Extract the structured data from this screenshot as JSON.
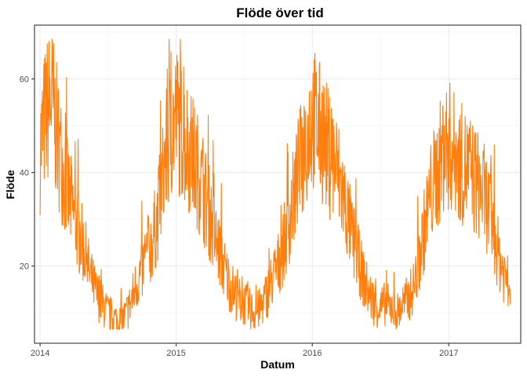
{
  "chart_data": {
    "type": "line",
    "title": "Flöde över tid",
    "xlabel": "Datum",
    "ylabel": "Flöde",
    "x_ticks": [
      "2014",
      "2015",
      "2016",
      "2017"
    ],
    "y_ticks": [
      20,
      40,
      60
    ],
    "xlim": [
      "2013-12-17",
      "2017-07-13"
    ],
    "ylim": [
      3.5,
      71.5
    ],
    "grid": true,
    "series": [
      {
        "color": "#FF7F0E",
        "x": [
          "2014-01-01",
          "2014-01-15",
          "2014-02-01",
          "2014-02-15",
          "2014-03-01",
          "2014-03-15",
          "2014-04-01",
          "2014-04-15",
          "2014-05-01",
          "2014-05-15",
          "2014-06-01",
          "2014-06-15",
          "2014-07-01",
          "2014-07-15",
          "2014-08-01",
          "2014-08-15",
          "2014-09-01",
          "2014-09-15",
          "2014-10-01",
          "2014-10-15",
          "2014-11-01",
          "2014-11-15",
          "2014-12-01",
          "2014-12-15",
          "2015-01-01",
          "2015-01-15",
          "2015-02-01",
          "2015-02-15",
          "2015-03-01",
          "2015-03-15",
          "2015-04-01",
          "2015-04-15",
          "2015-05-01",
          "2015-05-15",
          "2015-06-01",
          "2015-06-15",
          "2015-07-01",
          "2015-07-15",
          "2015-08-01",
          "2015-08-15",
          "2015-09-01",
          "2015-09-15",
          "2015-10-01",
          "2015-10-15",
          "2015-11-01",
          "2015-11-15",
          "2015-12-01",
          "2015-12-15",
          "2016-01-01",
          "2016-01-15",
          "2016-02-01",
          "2016-02-15",
          "2016-03-01",
          "2016-03-15",
          "2016-04-01",
          "2016-04-15",
          "2016-05-01",
          "2016-05-15",
          "2016-06-01",
          "2016-06-15",
          "2016-07-01",
          "2016-07-15",
          "2016-08-01",
          "2016-08-15",
          "2016-09-01",
          "2016-09-15",
          "2016-10-01",
          "2016-10-15",
          "2016-11-01",
          "2016-11-15",
          "2016-12-01",
          "2016-12-15",
          "2017-01-01",
          "2017-01-15",
          "2017-02-01",
          "2017-02-15",
          "2017-03-01",
          "2017-03-15",
          "2017-04-01",
          "2017-04-15",
          "2017-05-01",
          "2017-05-15",
          "2017-06-01",
          "2017-06-15"
        ],
        "y": [
          45,
          52,
          56,
          48,
          42,
          36,
          31,
          27,
          23,
          18,
          14,
          12,
          10,
          9,
          8,
          9,
          12,
          16,
          19,
          22,
          26,
          32,
          42,
          48,
          52,
          49,
          46,
          43,
          40,
          36,
          31,
          26,
          22,
          18,
          15,
          13,
          12,
          11,
          10,
          11,
          14,
          17,
          20,
          24,
          30,
          36,
          42,
          47,
          52,
          50,
          47,
          44,
          42,
          38,
          32,
          27,
          22,
          18,
          14,
          12,
          11,
          12,
          11,
          10,
          12,
          13,
          16,
          22,
          30,
          36,
          40,
          44,
          46,
          44,
          42,
          41,
          40,
          38,
          36,
          33,
          28,
          22,
          18,
          16
        ]
      }
    ]
  }
}
